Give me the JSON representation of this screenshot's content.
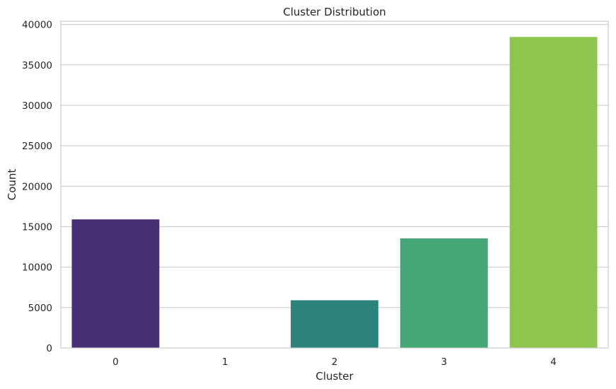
{
  "chart_data": {
    "type": "bar",
    "title": "Cluster Distribution",
    "xlabel": "Cluster",
    "ylabel": "Count",
    "categories": [
      "0",
      "1",
      "2",
      "3",
      "4"
    ],
    "values": [
      15900,
      0,
      5900,
      13550,
      38450
    ],
    "colors": [
      "#482f74",
      "#39568c",
      "#2c837c",
      "#45a775",
      "#8ec54f"
    ],
    "ylim": [
      0,
      40400
    ],
    "yticks": [
      0,
      5000,
      10000,
      15000,
      20000,
      25000,
      30000,
      35000,
      40000
    ],
    "grid": "horizontal",
    "gridColor": "#cccccc",
    "spineColor": "#cccccc"
  }
}
